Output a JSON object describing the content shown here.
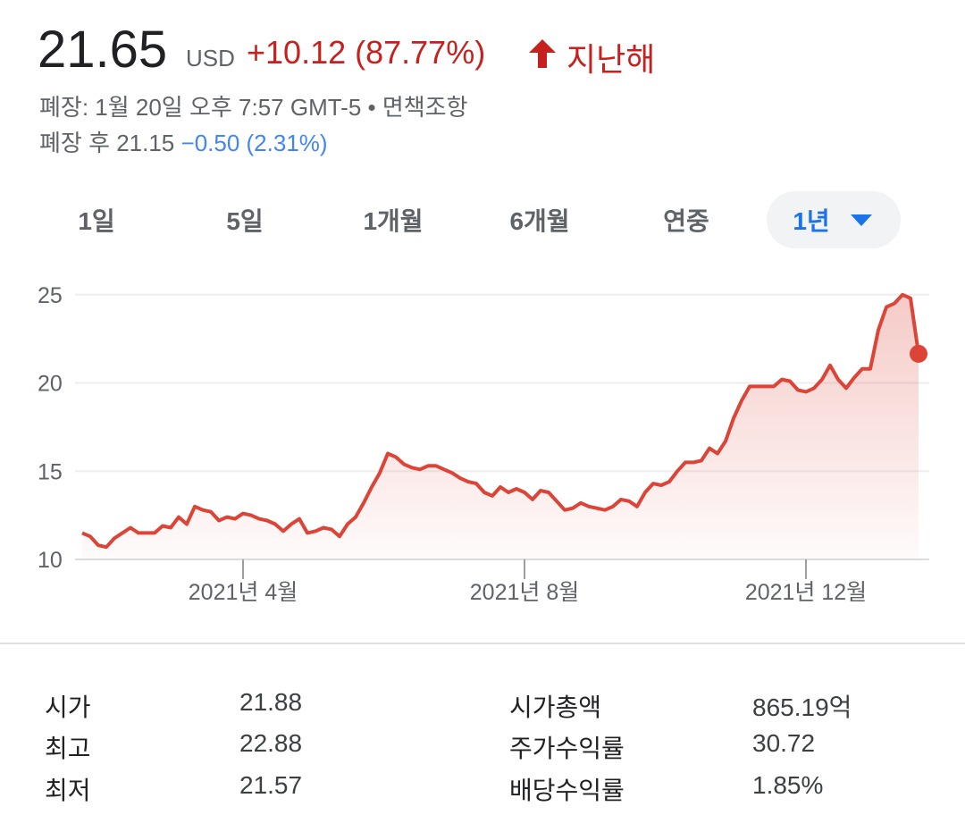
{
  "header": {
    "price": "21.65",
    "currency": "USD",
    "change": "+10.12 (87.77%)",
    "period": "지난해",
    "closed": "폐장: 1월 20일 오후 7:57 GMT-5 • 면책조항",
    "after_label": "폐장 후 21.15",
    "after_change": "−0.50 (2.31%)"
  },
  "tabs": [
    "1일",
    "5일",
    "1개월",
    "6개월",
    "연중",
    "1년"
  ],
  "chart_data": {
    "type": "line",
    "categories": [
      null,
      null,
      null,
      null,
      null,
      null,
      null,
      null,
      null,
      null,
      null,
      null,
      null,
      null,
      null,
      null,
      null,
      null,
      null,
      null,
      "2021년 4월",
      null,
      null,
      null,
      null,
      null,
      null,
      null,
      null,
      null,
      null,
      null,
      null,
      null,
      null,
      null,
      null,
      null,
      null,
      null,
      null,
      null,
      null,
      null,
      null,
      null,
      null,
      null,
      null,
      null,
      null,
      null,
      null,
      null,
      null,
      "2021년 8월",
      null,
      null,
      null,
      null,
      null,
      null,
      null,
      null,
      null,
      null,
      null,
      null,
      null,
      null,
      null,
      null,
      null,
      null,
      null,
      null,
      null,
      null,
      null,
      null,
      null,
      null,
      null,
      null,
      null,
      null,
      null,
      null,
      null,
      null,
      "2021년 12월",
      null,
      null,
      null,
      null,
      null,
      null,
      null,
      null,
      null,
      null,
      null,
      null,
      null,
      null
    ],
    "series": [
      {
        "color": "#db4437",
        "values": [
          11.5,
          11.3,
          10.8,
          10.7,
          11.2,
          11.5,
          11.8,
          11.5,
          11.5,
          11.5,
          11.9,
          11.8,
          12.4,
          12.0,
          13.0,
          12.8,
          12.7,
          12.2,
          12.4,
          12.3,
          12.6,
          12.5,
          12.3,
          12.2,
          12.0,
          11.6,
          12.0,
          12.3,
          11.5,
          11.6,
          11.8,
          11.7,
          11.3,
          12.0,
          12.4,
          13.2,
          14.1,
          14.9,
          16.0,
          15.8,
          15.4,
          15.2,
          15.1,
          15.3,
          15.3,
          15.1,
          14.9,
          14.6,
          14.4,
          14.3,
          13.8,
          13.6,
          14.1,
          13.8,
          14.0,
          13.8,
          13.4,
          13.9,
          13.8,
          13.3,
          12.8,
          12.9,
          13.2,
          13.0,
          12.9,
          12.8,
          13.0,
          13.4,
          13.3,
          13.0,
          13.8,
          14.3,
          14.2,
          14.4,
          15.0,
          15.5,
          15.5,
          15.6,
          16.3,
          16.0,
          16.7,
          18.0,
          19.0,
          19.8,
          19.8,
          19.8,
          19.8,
          20.2,
          20.1,
          19.6,
          19.5,
          19.7,
          20.2,
          21.0,
          20.2,
          19.7,
          20.3,
          20.8,
          20.8,
          23.0,
          24.3,
          24.5,
          25.0,
          24.8,
          21.65
        ]
      }
    ],
    "ylim": [
      10,
      26
    ],
    "yticks": [
      10,
      15,
      20,
      25
    ],
    "grid": true
  },
  "stats": [
    [
      "시가",
      "21.88",
      "시가총액",
      "865.19억"
    ],
    [
      "최고",
      "22.88",
      "주가수익률",
      "30.72"
    ],
    [
      "최저",
      "21.57",
      "배당수익률",
      "1.85%"
    ]
  ]
}
